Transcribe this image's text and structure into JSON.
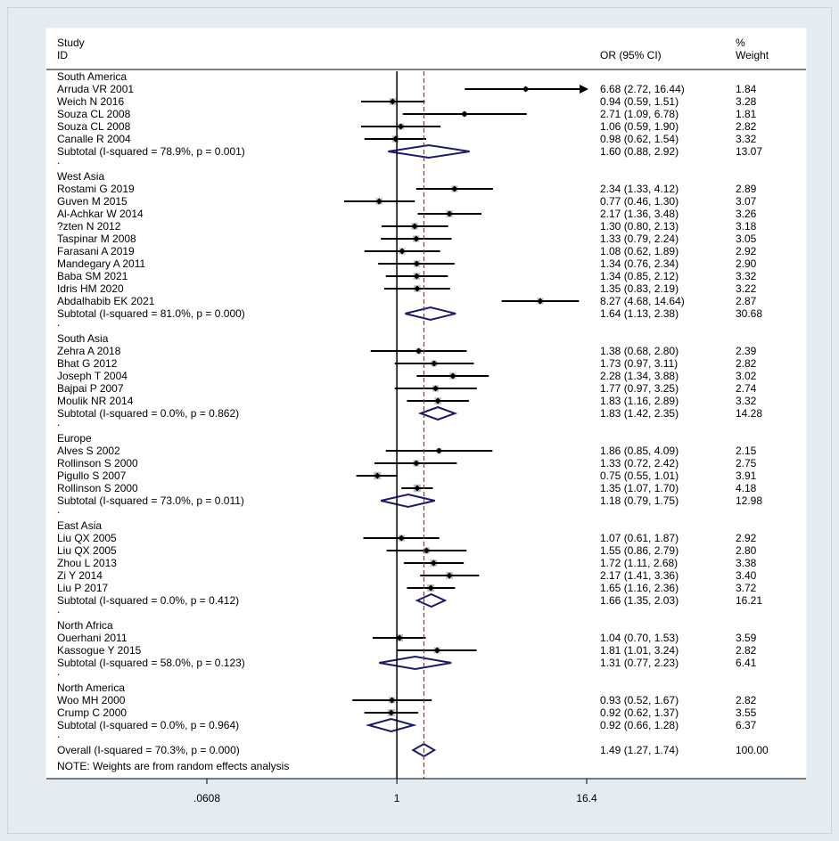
{
  "chart_data": {
    "type": "forest",
    "scale": "log",
    "xlim": [
      0.0608,
      16.4
    ],
    "x_ticks": [
      {
        "value": 0.0608,
        "label": ".0608"
      },
      {
        "value": 1,
        "label": "1"
      },
      {
        "value": 16.4,
        "label": "16.4"
      }
    ],
    "reference_line": 1,
    "overall_line": 1.49,
    "headers": {
      "study_line1": "Study",
      "study_line2": "ID",
      "effect": "OR (95% CI)",
      "weight_line1": "%",
      "weight_line2": "Weight"
    },
    "groups": [
      {
        "name": "South America",
        "studies": [
          {
            "label": "Arruda VR 2001",
            "or": 6.68,
            "lo": 2.72,
            "hi": 16.44,
            "ci_text": "6.68 (2.72, 16.44)",
            "weight": "1.84",
            "arrow": true
          },
          {
            "label": "Weich N 2016",
            "or": 0.94,
            "lo": 0.59,
            "hi": 1.51,
            "ci_text": "0.94 (0.59, 1.51)",
            "weight": "3.28"
          },
          {
            "label": "Souza CL 2008",
            "or": 2.71,
            "lo": 1.09,
            "hi": 6.78,
            "ci_text": "2.71 (1.09, 6.78)",
            "weight": "1.81"
          },
          {
            "label": "Souza CL 2008",
            "or": 1.06,
            "lo": 0.59,
            "hi": 1.9,
            "ci_text": "1.06 (0.59, 1.90)",
            "weight": "2.82"
          },
          {
            "label": "Canalle R 2004",
            "or": 0.98,
            "lo": 0.62,
            "hi": 1.54,
            "ci_text": "0.98 (0.62, 1.54)",
            "weight": "3.32"
          }
        ],
        "subtotal": {
          "label": "Subtotal  (I-squared = 78.9%, p = 0.001)",
          "or": 1.6,
          "lo": 0.88,
          "hi": 2.92,
          "ci_text": "1.60 (0.88, 2.92)",
          "weight": "13.07"
        }
      },
      {
        "name": "West Asia",
        "studies": [
          {
            "label": "Rostami G 2019",
            "or": 2.34,
            "lo": 1.33,
            "hi": 4.12,
            "ci_text": "2.34 (1.33, 4.12)",
            "weight": "2.89"
          },
          {
            "label": "Guven M 2015",
            "or": 0.77,
            "lo": 0.46,
            "hi": 1.3,
            "ci_text": "0.77 (0.46, 1.30)",
            "weight": "3.07"
          },
          {
            "label": "Al-Achkar W 2014",
            "or": 2.17,
            "lo": 1.36,
            "hi": 3.48,
            "ci_text": "2.17 (1.36, 3.48)",
            "weight": "3.26"
          },
          {
            "label": "?zten N 2012",
            "or": 1.3,
            "lo": 0.8,
            "hi": 2.13,
            "ci_text": "1.30 (0.80, 2.13)",
            "weight": "3.18"
          },
          {
            "label": "Taspinar M 2008",
            "or": 1.33,
            "lo": 0.79,
            "hi": 2.24,
            "ci_text": "1.33 (0.79, 2.24)",
            "weight": "3.05"
          },
          {
            "label": "Farasani A 2019",
            "or": 1.08,
            "lo": 0.62,
            "hi": 1.89,
            "ci_text": "1.08 (0.62, 1.89)",
            "weight": "2.92"
          },
          {
            "label": "Mandegary A 2011",
            "or": 1.34,
            "lo": 0.76,
            "hi": 2.34,
            "ci_text": "1.34 (0.76, 2.34)",
            "weight": "2.90"
          },
          {
            "label": "Baba SM 2021",
            "or": 1.34,
            "lo": 0.85,
            "hi": 2.12,
            "ci_text": "1.34 (0.85, 2.12)",
            "weight": "3.32"
          },
          {
            "label": "Idris HM 2020",
            "or": 1.35,
            "lo": 0.83,
            "hi": 2.19,
            "ci_text": "1.35 (0.83, 2.19)",
            "weight": "3.22"
          },
          {
            "label": "Abdalhabib EK 2021",
            "or": 8.27,
            "lo": 4.68,
            "hi": 14.64,
            "ci_text": "8.27 (4.68, 14.64)",
            "weight": "2.87"
          }
        ],
        "subtotal": {
          "label": "Subtotal  (I-squared = 81.0%, p = 0.000)",
          "or": 1.64,
          "lo": 1.13,
          "hi": 2.38,
          "ci_text": "1.64 (1.13, 2.38)",
          "weight": "30.68"
        }
      },
      {
        "name": "South Asia",
        "studies": [
          {
            "label": "Zehra A 2018",
            "or": 1.38,
            "lo": 0.68,
            "hi": 2.8,
            "ci_text": "1.38 (0.68, 2.80)",
            "weight": "2.39"
          },
          {
            "label": "Bhat G 2012",
            "or": 1.73,
            "lo": 0.97,
            "hi": 3.11,
            "ci_text": "1.73 (0.97, 3.11)",
            "weight": "2.82"
          },
          {
            "label": "Joseph T 2004",
            "or": 2.28,
            "lo": 1.34,
            "hi": 3.88,
            "ci_text": "2.28 (1.34, 3.88)",
            "weight": "3.02"
          },
          {
            "label": "Bajpai P 2007",
            "or": 1.77,
            "lo": 0.97,
            "hi": 3.25,
            "ci_text": "1.77 (0.97, 3.25)",
            "weight": "2.74"
          },
          {
            "label": "Moulik NR 2014",
            "or": 1.83,
            "lo": 1.16,
            "hi": 2.89,
            "ci_text": "1.83 (1.16, 2.89)",
            "weight": "3.32"
          }
        ],
        "subtotal": {
          "label": "Subtotal  (I-squared = 0.0%, p = 0.862)",
          "or": 1.83,
          "lo": 1.42,
          "hi": 2.35,
          "ci_text": "1.83 (1.42, 2.35)",
          "weight": "14.28"
        }
      },
      {
        "name": "Europe",
        "studies": [
          {
            "label": "Alves S 2002",
            "or": 1.86,
            "lo": 0.85,
            "hi": 4.09,
            "ci_text": "1.86 (0.85, 4.09)",
            "weight": "2.15"
          },
          {
            "label": "Rollinson S 2000",
            "or": 1.33,
            "lo": 0.72,
            "hi": 2.42,
            "ci_text": "1.33 (0.72, 2.42)",
            "weight": "2.75"
          },
          {
            "label": "Pigullo S 2007",
            "or": 0.75,
            "lo": 0.55,
            "hi": 1.01,
            "ci_text": "0.75 (0.55, 1.01)",
            "weight": "3.91"
          },
          {
            "label": "Rollinson S 2000",
            "or": 1.35,
            "lo": 1.07,
            "hi": 1.7,
            "ci_text": "1.35 (1.07, 1.70)",
            "weight": "4.18"
          }
        ],
        "subtotal": {
          "label": "Subtotal  (I-squared = 73.0%, p = 0.011)",
          "or": 1.18,
          "lo": 0.79,
          "hi": 1.75,
          "ci_text": "1.18 (0.79, 1.75)",
          "weight": "12.98"
        }
      },
      {
        "name": "East Asia",
        "studies": [
          {
            "label": "Liu QX 2005",
            "or": 1.07,
            "lo": 0.61,
            "hi": 1.87,
            "ci_text": "1.07 (0.61, 1.87)",
            "weight": "2.92"
          },
          {
            "label": "Liu QX 2005",
            "or": 1.55,
            "lo": 0.86,
            "hi": 2.79,
            "ci_text": "1.55 (0.86, 2.79)",
            "weight": "2.80"
          },
          {
            "label": "Zhou L 2013",
            "or": 1.72,
            "lo": 1.11,
            "hi": 2.68,
            "ci_text": "1.72 (1.11, 2.68)",
            "weight": "3.38"
          },
          {
            "label": "Zi Y 2014",
            "or": 2.17,
            "lo": 1.41,
            "hi": 3.36,
            "ci_text": "2.17 (1.41, 3.36)",
            "weight": "3.40"
          },
          {
            "label": "Liu P 2017",
            "or": 1.65,
            "lo": 1.16,
            "hi": 2.36,
            "ci_text": "1.65 (1.16, 2.36)",
            "weight": "3.72"
          }
        ],
        "subtotal": {
          "label": "Subtotal  (I-squared = 0.0%, p = 0.412)",
          "or": 1.66,
          "lo": 1.35,
          "hi": 2.03,
          "ci_text": "1.66 (1.35, 2.03)",
          "weight": "16.21"
        }
      },
      {
        "name": "North Africa",
        "studies": [
          {
            "label": "Ouerhani 2011",
            "or": 1.04,
            "lo": 0.7,
            "hi": 1.53,
            "ci_text": "1.04 (0.70, 1.53)",
            "weight": "3.59"
          },
          {
            "label": "Kassogue Y 2015",
            "or": 1.81,
            "lo": 1.01,
            "hi": 3.24,
            "ci_text": "1.81 (1.01, 3.24)",
            "weight": "2.82"
          }
        ],
        "subtotal": {
          "label": "Subtotal  (I-squared = 58.0%, p = 0.123)",
          "or": 1.31,
          "lo": 0.77,
          "hi": 2.23,
          "ci_text": "1.31 (0.77, 2.23)",
          "weight": "6.41"
        }
      },
      {
        "name": "North America",
        "studies": [
          {
            "label": "Woo MH 2000",
            "or": 0.93,
            "lo": 0.52,
            "hi": 1.67,
            "ci_text": "0.93 (0.52, 1.67)",
            "weight": "2.82"
          },
          {
            "label": "Crump C 2000",
            "or": 0.92,
            "lo": 0.62,
            "hi": 1.37,
            "ci_text": "0.92 (0.62, 1.37)",
            "weight": "3.55"
          }
        ],
        "subtotal": {
          "label": "Subtotal  (I-squared = 0.0%, p = 0.964)",
          "or": 0.92,
          "lo": 0.66,
          "hi": 1.28,
          "ci_text": "0.92 (0.66, 1.28)",
          "weight": "6.37"
        }
      }
    ],
    "separator_char": ".",
    "overall": {
      "label": "Overall  (I-squared = 70.3%, p = 0.000)",
      "or": 1.49,
      "lo": 1.27,
      "hi": 1.74,
      "ci_text": "1.49 (1.27, 1.74)",
      "weight": "100.00"
    },
    "note": "NOTE: Weights are from random effects analysis"
  }
}
